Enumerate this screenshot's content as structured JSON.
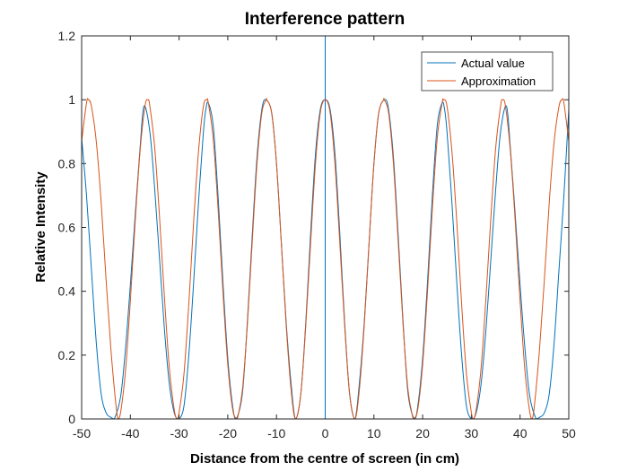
{
  "chart_data": {
    "type": "line",
    "title": "Interference pattern",
    "xlabel": "Distance from the centre of screen (in cm)",
    "ylabel": "Relative Intensity",
    "xlim": [
      -50,
      50
    ],
    "ylim": [
      0,
      1.2
    ],
    "xticks": [
      -50,
      -40,
      -30,
      -20,
      -10,
      0,
      10,
      20,
      30,
      40,
      50
    ],
    "yticks": [
      0,
      0.2,
      0.4,
      0.6,
      0.8,
      1,
      1.2
    ],
    "ytick_labels": [
      "0",
      "0.2",
      "0.4",
      "0.6",
      "0.8",
      "1",
      "1.2"
    ],
    "grid": false,
    "legend_position": "top-right",
    "series": [
      {
        "name": "Actual value",
        "color": "#0072BD",
        "x": [
          -50,
          -49,
          -48,
          -47,
          -46,
          -45,
          -44,
          -43.3,
          -42,
          -41,
          -40,
          -39,
          -38,
          -37.2,
          -36,
          -35,
          -34,
          -33,
          -32,
          -31,
          -30.1,
          -29,
          -28,
          -27,
          -26,
          -25,
          -24.5,
          -24,
          -23,
          -22,
          -21,
          -20,
          -19,
          -18.3,
          -17,
          -16,
          -15,
          -14,
          -13,
          -12.2,
          -11,
          -10,
          -9,
          -8,
          -7,
          -6.1,
          -5,
          -4,
          -3,
          -2,
          -1,
          0,
          1,
          2,
          3,
          4,
          5,
          6.1,
          7,
          8,
          9,
          10,
          11,
          12.2,
          13,
          14,
          15,
          16,
          17,
          18.3,
          19,
          20,
          21,
          22,
          23,
          24,
          24.5,
          25,
          26,
          27,
          28,
          29,
          30.1,
          31,
          32,
          33,
          34,
          35,
          36,
          37.2,
          38,
          39,
          40,
          41,
          42,
          43.3,
          44,
          45,
          46,
          47,
          48,
          49,
          50
        ],
        "y": [
          0.88,
          0.7,
          0.47,
          0.24,
          0.08,
          0.02,
          0.005,
          0,
          0.07,
          0.22,
          0.42,
          0.64,
          0.85,
          0.98,
          0.9,
          0.72,
          0.5,
          0.28,
          0.11,
          0.02,
          0,
          0.04,
          0.2,
          0.43,
          0.68,
          0.9,
          0.97,
          0.99,
          0.92,
          0.7,
          0.43,
          0.19,
          0.04,
          0,
          0.08,
          0.3,
          0.57,
          0.82,
          0.97,
          1.0,
          0.96,
          0.8,
          0.55,
          0.3,
          0.11,
          0,
          0.08,
          0.3,
          0.58,
          0.83,
          0.97,
          1.0,
          0.97,
          0.83,
          0.58,
          0.3,
          0.08,
          0,
          0.11,
          0.3,
          0.55,
          0.8,
          0.96,
          1.0,
          0.97,
          0.82,
          0.57,
          0.3,
          0.08,
          0,
          0.04,
          0.19,
          0.43,
          0.7,
          0.92,
          0.99,
          0.97,
          0.9,
          0.68,
          0.43,
          0.2,
          0.04,
          0,
          0.02,
          0.11,
          0.28,
          0.5,
          0.72,
          0.9,
          0.98,
          0.85,
          0.64,
          0.42,
          0.22,
          0.07,
          0,
          0.005,
          0.02,
          0.08,
          0.24,
          0.47,
          0.7,
          0.97
        ]
      },
      {
        "name": "Approximation",
        "color": "#D95319",
        "x": [
          -50,
          -49,
          -48.6,
          -48,
          -47,
          -46,
          -45,
          -44,
          -43,
          -42.5,
          -42,
          -41,
          -40,
          -39,
          -38,
          -37,
          -36.4,
          -36,
          -35,
          -34,
          -33,
          -32,
          -31,
          -30.4,
          -30,
          -29,
          -28,
          -27,
          -26,
          -25,
          -24.3,
          -24,
          -23,
          -22,
          -21,
          -20,
          -19,
          -18.2,
          -18,
          -17,
          -16,
          -15,
          -14,
          -13,
          -12.1,
          -12,
          -11,
          -10,
          -9,
          -8,
          -7,
          -6.1,
          -5,
          -4,
          -3,
          -2,
          -1,
          0,
          1,
          2,
          3,
          4,
          5,
          6.1,
          7,
          8,
          9,
          10,
          11,
          12,
          12.1,
          13,
          14,
          15,
          16,
          17,
          18,
          18.2,
          19,
          20,
          21,
          22,
          23,
          24,
          24.3,
          25,
          26,
          27,
          28,
          29,
          30,
          30.4,
          31,
          32,
          33,
          34,
          35,
          36,
          36.4,
          37,
          38,
          39,
          40,
          41,
          42,
          42.5,
          43,
          44,
          45,
          46,
          47,
          48,
          48.6,
          49,
          50
        ],
        "y": [
          0.87,
          0.99,
          1.0,
          0.98,
          0.87,
          0.68,
          0.44,
          0.22,
          0.05,
          0,
          0.02,
          0.15,
          0.37,
          0.62,
          0.84,
          0.98,
          1.0,
          0.98,
          0.85,
          0.63,
          0.38,
          0.16,
          0.03,
          0,
          0.02,
          0.14,
          0.36,
          0.62,
          0.84,
          0.98,
          1.0,
          0.99,
          0.88,
          0.66,
          0.4,
          0.17,
          0.03,
          0,
          0.003,
          0.09,
          0.29,
          0.55,
          0.8,
          0.96,
          1.0,
          1.0,
          0.96,
          0.8,
          0.55,
          0.29,
          0.09,
          0,
          0.08,
          0.29,
          0.55,
          0.8,
          0.96,
          1.0,
          0.96,
          0.8,
          0.55,
          0.29,
          0.08,
          0,
          0.09,
          0.29,
          0.55,
          0.8,
          0.96,
          1.0,
          1.0,
          0.96,
          0.8,
          0.55,
          0.29,
          0.09,
          0.003,
          0,
          0.03,
          0.17,
          0.4,
          0.66,
          0.88,
          0.99,
          1.0,
          0.98,
          0.84,
          0.62,
          0.36,
          0.14,
          0.02,
          0,
          0.03,
          0.16,
          0.38,
          0.63,
          0.85,
          0.98,
          1.0,
          0.98,
          0.84,
          0.62,
          0.37,
          0.15,
          0.02,
          0,
          0.05,
          0.22,
          0.44,
          0.68,
          0.87,
          0.98,
          1.0,
          0.99,
          0.87
        ]
      }
    ],
    "vertical_line": {
      "x": 0,
      "color": "#0072BD"
    }
  }
}
